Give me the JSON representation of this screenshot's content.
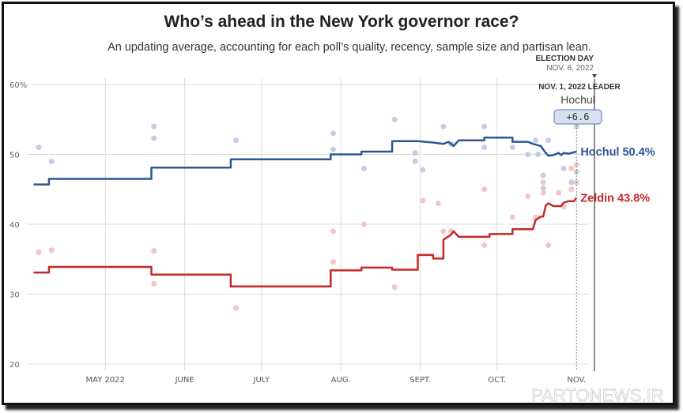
{
  "chart_data": {
    "type": "line",
    "title": "Who’s ahead in the New York governor race?",
    "subtitle": "An updating average, accounting for each poll’s quality, recency, sample size and partisan lean.",
    "xlabel": "",
    "ylabel": "",
    "ylim": [
      20,
      60
    ],
    "yticks": [
      "60%",
      "50",
      "40",
      "30",
      "20"
    ],
    "ytick_values": [
      60,
      50,
      40,
      30,
      20
    ],
    "xlim": [
      "2022-04-01",
      "2022-11-08"
    ],
    "xticks": [
      {
        "label": "MAY 2022",
        "date": "2022-05-01"
      },
      {
        "label": "JUNE",
        "date": "2022-06-01"
      },
      {
        "label": "JULY",
        "date": "2022-07-01"
      },
      {
        "label": "AUG.",
        "date": "2022-08-01"
      },
      {
        "label": "SEPT.",
        "date": "2022-09-01"
      },
      {
        "label": "OCT.",
        "date": "2022-10-01"
      },
      {
        "label": "NOV.",
        "date": "2022-11-01"
      }
    ],
    "grid": true,
    "series": [
      {
        "name": "Hochul",
        "end_label": "Hochul 50.4%",
        "color": "#2f5597",
        "dot_color": "#b9c6e0",
        "points": [
          [
            "2022-04-03",
            45.7
          ],
          [
            "2022-04-09",
            45.7
          ],
          [
            "2022-04-09",
            46.5
          ],
          [
            "2022-05-19",
            46.5
          ],
          [
            "2022-05-19",
            48.1
          ],
          [
            "2022-06-19",
            48.1
          ],
          [
            "2022-06-19",
            49.3
          ],
          [
            "2022-07-28",
            49.3
          ],
          [
            "2022-07-28",
            50.0
          ],
          [
            "2022-08-09",
            50.0
          ],
          [
            "2022-08-09",
            50.4
          ],
          [
            "2022-08-21",
            50.4
          ],
          [
            "2022-08-21",
            51.9
          ],
          [
            "2022-08-31",
            51.9
          ],
          [
            "2022-09-06",
            51.7
          ],
          [
            "2022-09-10",
            51.5
          ],
          [
            "2022-09-12",
            51.8
          ],
          [
            "2022-09-14",
            51.2
          ],
          [
            "2022-09-16",
            52.0
          ],
          [
            "2022-09-26",
            52.0
          ],
          [
            "2022-09-26",
            52.4
          ],
          [
            "2022-10-07",
            52.4
          ],
          [
            "2022-10-07",
            51.8
          ],
          [
            "2022-10-13",
            51.8
          ],
          [
            "2022-10-15",
            51.5
          ],
          [
            "2022-10-18",
            51.2
          ],
          [
            "2022-10-20",
            50.2
          ],
          [
            "2022-10-21",
            49.8
          ],
          [
            "2022-10-23",
            49.9
          ],
          [
            "2022-10-25",
            50.2
          ],
          [
            "2022-10-26",
            49.9
          ],
          [
            "2022-10-27",
            50.2
          ],
          [
            "2022-10-29",
            50.1
          ],
          [
            "2022-11-01",
            50.4
          ]
        ],
        "polls": [
          [
            "2022-04-05",
            51.0
          ],
          [
            "2022-04-10",
            49.0
          ],
          [
            "2022-05-20",
            54.0
          ],
          [
            "2022-05-20",
            52.3
          ],
          [
            "2022-06-21",
            52.0
          ],
          [
            "2022-07-29",
            53.0
          ],
          [
            "2022-07-29",
            50.7
          ],
          [
            "2022-08-10",
            48.0
          ],
          [
            "2022-08-22",
            55.0
          ],
          [
            "2022-08-30",
            50.2
          ],
          [
            "2022-08-30",
            49.0
          ],
          [
            "2022-09-02",
            47.8
          ],
          [
            "2022-09-10",
            54.0
          ],
          [
            "2022-09-13",
            51.5
          ],
          [
            "2022-09-26",
            54.0
          ],
          [
            "2022-09-26",
            51.0
          ],
          [
            "2022-10-07",
            51.0
          ],
          [
            "2022-10-13",
            50.0
          ],
          [
            "2022-10-16",
            52.0
          ],
          [
            "2022-10-17",
            50.0
          ],
          [
            "2022-10-19",
            47.0
          ],
          [
            "2022-10-19",
            45.2
          ],
          [
            "2022-10-21",
            52.0
          ],
          [
            "2022-10-27",
            48.0
          ],
          [
            "2022-10-30",
            46.0
          ],
          [
            "2022-11-01",
            47.5
          ],
          [
            "2022-11-01",
            54.0
          ]
        ]
      },
      {
        "name": "Zeldin",
        "end_label": "Zeldin 43.8%",
        "color": "#c62828",
        "dot_color": "#f0bcbc",
        "points": [
          [
            "2022-04-03",
            33.1
          ],
          [
            "2022-04-09",
            33.1
          ],
          [
            "2022-04-09",
            33.9
          ],
          [
            "2022-05-19",
            33.9
          ],
          [
            "2022-05-19",
            32.8
          ],
          [
            "2022-06-19",
            32.8
          ],
          [
            "2022-06-19",
            31.1
          ],
          [
            "2022-07-28",
            31.1
          ],
          [
            "2022-07-28",
            33.4
          ],
          [
            "2022-08-09",
            33.4
          ],
          [
            "2022-08-09",
            33.8
          ],
          [
            "2022-08-21",
            33.8
          ],
          [
            "2022-08-21",
            33.5
          ],
          [
            "2022-08-31",
            33.5
          ],
          [
            "2022-08-31",
            35.6
          ],
          [
            "2022-09-06",
            35.6
          ],
          [
            "2022-09-06",
            35.1
          ],
          [
            "2022-09-10",
            35.1
          ],
          [
            "2022-09-10",
            37.8
          ],
          [
            "2022-09-13",
            38.5
          ],
          [
            "2022-09-14",
            39.0
          ],
          [
            "2022-09-16",
            38.2
          ],
          [
            "2022-09-28",
            38.2
          ],
          [
            "2022-09-28",
            38.6
          ],
          [
            "2022-10-07",
            38.6
          ],
          [
            "2022-10-07",
            39.3
          ],
          [
            "2022-10-15",
            39.3
          ],
          [
            "2022-10-16",
            40.6
          ],
          [
            "2022-10-18",
            41.1
          ],
          [
            "2022-10-19",
            41.1
          ],
          [
            "2022-10-20",
            42.7
          ],
          [
            "2022-10-21",
            43.0
          ],
          [
            "2022-10-23",
            42.6
          ],
          [
            "2022-10-26",
            42.6
          ],
          [
            "2022-10-27",
            43.1
          ],
          [
            "2022-10-29",
            43.3
          ],
          [
            "2022-10-31",
            43.3
          ],
          [
            "2022-11-01",
            43.8
          ]
        ],
        "polls": [
          [
            "2022-04-05",
            36.0
          ],
          [
            "2022-04-10",
            36.3
          ],
          [
            "2022-05-20",
            36.2
          ],
          [
            "2022-05-20",
            31.5
          ],
          [
            "2022-06-21",
            28.0
          ],
          [
            "2022-07-29",
            39.0
          ],
          [
            "2022-07-29",
            34.6
          ],
          [
            "2022-08-10",
            40.0
          ],
          [
            "2022-08-22",
            31.0
          ],
          [
            "2022-09-02",
            43.4
          ],
          [
            "2022-09-08",
            43.0
          ],
          [
            "2022-09-10",
            39.0
          ],
          [
            "2022-09-13",
            39.0
          ],
          [
            "2022-09-26",
            45.0
          ],
          [
            "2022-09-26",
            37.0
          ],
          [
            "2022-10-07",
            41.0
          ],
          [
            "2022-10-13",
            44.0
          ],
          [
            "2022-10-16",
            41.0
          ],
          [
            "2022-10-19",
            46.0
          ],
          [
            "2022-10-19",
            44.5
          ],
          [
            "2022-10-21",
            37.0
          ],
          [
            "2022-10-25",
            44.5
          ],
          [
            "2022-10-27",
            42.5
          ],
          [
            "2022-10-30",
            45.0
          ],
          [
            "2022-11-01",
            46.0
          ],
          [
            "2022-11-01",
            48.5
          ],
          [
            "2022-10-30",
            48.0
          ]
        ]
      }
    ],
    "annotations": {
      "election_day_label": "ELECTION DAY",
      "election_day_date_text": "NOV. 8, 2022",
      "election_day": "2022-11-08",
      "leader_heading": "NOV. 1, 2022 LEADER",
      "leader_date": "2022-11-01",
      "leader_name": "Hochul",
      "leader_margin": "+6.6"
    }
  },
  "watermark": "PARTONEWS.IR"
}
